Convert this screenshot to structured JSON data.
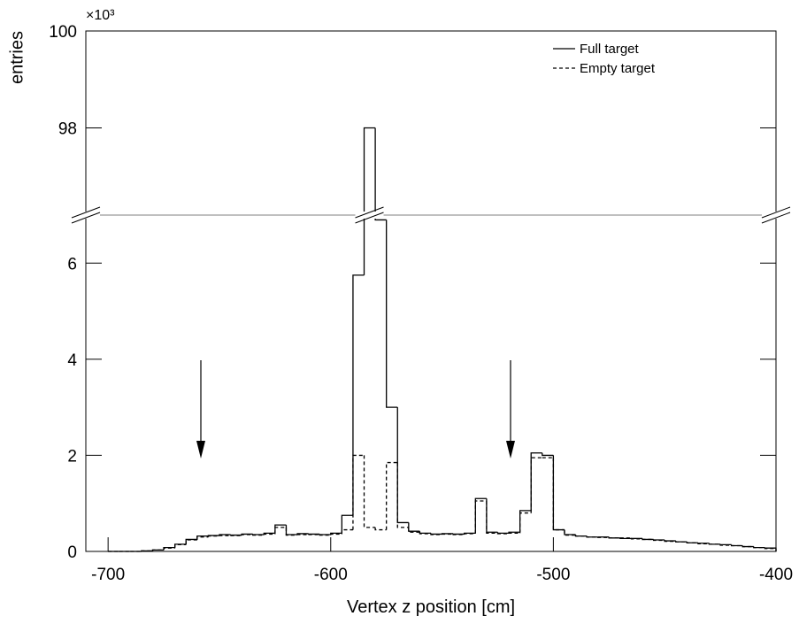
{
  "chart_data": {
    "type": "histogram",
    "x_label": "Vertex z position [cm]",
    "y_label": "entries",
    "y_multiplier": "×10³",
    "bins": [
      -700,
      -695,
      -690,
      -685,
      -680,
      -675,
      -670,
      -665,
      -660,
      -655,
      -650,
      -645,
      -640,
      -635,
      -630,
      -625,
      -620,
      -615,
      -610,
      -605,
      -600,
      -595,
      -590,
      -585,
      -580,
      -575,
      -570,
      -565,
      -560,
      -555,
      -550,
      -545,
      -540,
      -535,
      -530,
      -525,
      -520,
      -515,
      -510,
      -505,
      -500,
      -495,
      -490,
      -485,
      -480,
      -475,
      -470,
      -465,
      -460,
      -455,
      -450,
      -445,
      -440,
      -435,
      -430,
      -425,
      -420,
      -415,
      -410,
      -405,
      -400
    ],
    "series": [
      {
        "name": "Full target",
        "color": "#000000",
        "dash": "none",
        "values": [
          0,
          0,
          0,
          0.01,
          0.03,
          0.08,
          0.15,
          0.25,
          0.32,
          0.33,
          0.35,
          0.34,
          0.36,
          0.35,
          0.38,
          0.55,
          0.35,
          0.37,
          0.36,
          0.35,
          0.38,
          0.75,
          5.75,
          98,
          6.9,
          3.0,
          0.6,
          0.42,
          0.38,
          0.36,
          0.37,
          0.36,
          0.38,
          1.1,
          0.4,
          0.38,
          0.4,
          0.85,
          2.05,
          2.0,
          0.45,
          0.35,
          0.32,
          0.3,
          0.3,
          0.28,
          0.27,
          0.27,
          0.25,
          0.24,
          0.22,
          0.2,
          0.18,
          0.17,
          0.15,
          0.14,
          0.12,
          0.1,
          0.08,
          0.07
        ]
      },
      {
        "name": "Empty target",
        "color": "#000000",
        "dash": "4,3",
        "values": [
          0,
          0,
          0,
          0.01,
          0.03,
          0.07,
          0.14,
          0.24,
          0.3,
          0.32,
          0.33,
          0.33,
          0.35,
          0.34,
          0.36,
          0.5,
          0.34,
          0.35,
          0.35,
          0.34,
          0.36,
          0.45,
          2.0,
          0.5,
          0.45,
          1.85,
          0.5,
          0.4,
          0.37,
          0.35,
          0.36,
          0.35,
          0.37,
          1.05,
          0.38,
          0.37,
          0.38,
          0.8,
          1.95,
          1.95,
          0.45,
          0.34,
          0.32,
          0.3,
          0.29,
          0.28,
          0.28,
          0.26,
          0.25,
          0.23,
          0.21,
          0.2,
          0.18,
          0.16,
          0.15,
          0.13,
          0.12,
          0.1,
          0.08,
          0.06
        ]
      }
    ],
    "xlim": [
      -710,
      -400
    ],
    "xticks": [
      -700,
      -600,
      -500,
      -400
    ],
    "ylim": [
      0,
      100
    ],
    "y_break": [
      7,
      96.2
    ],
    "yticks": [
      0,
      2,
      4,
      6,
      98,
      100
    ],
    "legend": "top-right"
  }
}
